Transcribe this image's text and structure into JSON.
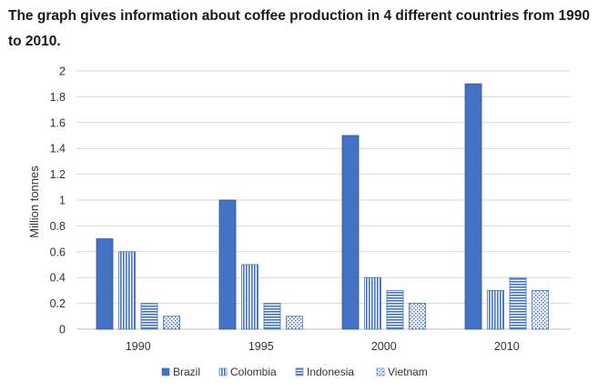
{
  "title": "The graph gives information about coffee production in 4 different countries from 1990 to 2010.",
  "colors": {
    "bar": "#4472c4",
    "bar_dark": "#2f5597",
    "grid": "#d9d9d9"
  },
  "chart_data": {
    "type": "bar",
    "title": "The graph gives information about coffee production in 4 different countries from 1990 to 2010.",
    "xlabel": "",
    "ylabel": "Million tonnes",
    "ylim": [
      0,
      2
    ],
    "yticks": [
      "0",
      "0.2",
      "0.4",
      "0.6",
      "0.8",
      "1",
      "1.2",
      "1.4",
      "1.6",
      "1.8",
      "2"
    ],
    "categories": [
      "1990",
      "1995",
      "2000",
      "2010"
    ],
    "grid": true,
    "legend_position": "bottom",
    "series": [
      {
        "name": "Brazil",
        "pattern": "solid",
        "values": [
          0.7,
          1.0,
          1.5,
          1.9
        ]
      },
      {
        "name": "Colombia",
        "pattern": "vertical-lines",
        "values": [
          0.6,
          0.5,
          0.4,
          0.3
        ]
      },
      {
        "name": "Indonesia",
        "pattern": "horizontal-lines",
        "values": [
          0.2,
          0.2,
          0.3,
          0.4
        ]
      },
      {
        "name": "Vietnam",
        "pattern": "dots",
        "values": [
          0.1,
          0.1,
          0.2,
          0.3
        ]
      }
    ]
  }
}
